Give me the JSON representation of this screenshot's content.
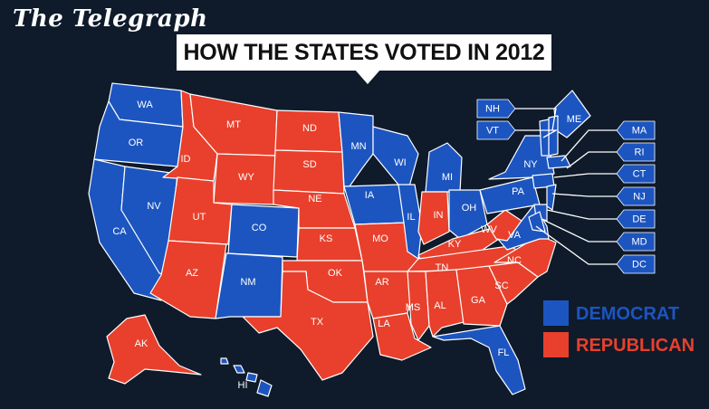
{
  "brand": "The Telegraph",
  "title": "HOW THE STATES VOTED IN 2012",
  "colors": {
    "democrat": "#1c55c0",
    "republican": "#e8402c",
    "background": "#0f1b2b",
    "border": "#ffffff"
  },
  "legend": [
    {
      "label": "DEMOCRAT",
      "party": "democrat"
    },
    {
      "label": "REPUBLICAN",
      "party": "republican"
    }
  ],
  "states": [
    {
      "abbr": "WA",
      "party": "democrat"
    },
    {
      "abbr": "OR",
      "party": "democrat"
    },
    {
      "abbr": "CA",
      "party": "democrat"
    },
    {
      "abbr": "NV",
      "party": "democrat"
    },
    {
      "abbr": "ID",
      "party": "republican"
    },
    {
      "abbr": "MT",
      "party": "republican"
    },
    {
      "abbr": "WY",
      "party": "republican"
    },
    {
      "abbr": "UT",
      "party": "republican"
    },
    {
      "abbr": "AZ",
      "party": "republican"
    },
    {
      "abbr": "CO",
      "party": "democrat"
    },
    {
      "abbr": "NM",
      "party": "democrat"
    },
    {
      "abbr": "ND",
      "party": "republican"
    },
    {
      "abbr": "SD",
      "party": "republican"
    },
    {
      "abbr": "NE",
      "party": "republican"
    },
    {
      "abbr": "KS",
      "party": "republican"
    },
    {
      "abbr": "OK",
      "party": "republican"
    },
    {
      "abbr": "TX",
      "party": "republican"
    },
    {
      "abbr": "MN",
      "party": "democrat"
    },
    {
      "abbr": "IA",
      "party": "democrat"
    },
    {
      "abbr": "MO",
      "party": "republican"
    },
    {
      "abbr": "AR",
      "party": "republican"
    },
    {
      "abbr": "LA",
      "party": "republican"
    },
    {
      "abbr": "WI",
      "party": "democrat"
    },
    {
      "abbr": "IL",
      "party": "democrat"
    },
    {
      "abbr": "MI",
      "party": "democrat"
    },
    {
      "abbr": "IN",
      "party": "republican"
    },
    {
      "abbr": "OH",
      "party": "democrat"
    },
    {
      "abbr": "KY",
      "party": "republican"
    },
    {
      "abbr": "TN",
      "party": "republican"
    },
    {
      "abbr": "MS",
      "party": "republican"
    },
    {
      "abbr": "AL",
      "party": "republican"
    },
    {
      "abbr": "GA",
      "party": "republican"
    },
    {
      "abbr": "FL",
      "party": "democrat"
    },
    {
      "abbr": "SC",
      "party": "republican"
    },
    {
      "abbr": "NC",
      "party": "republican"
    },
    {
      "abbr": "VA",
      "party": "democrat"
    },
    {
      "abbr": "WV",
      "party": "republican"
    },
    {
      "abbr": "PA",
      "party": "democrat"
    },
    {
      "abbr": "NY",
      "party": "democrat"
    },
    {
      "abbr": "ME",
      "party": "democrat"
    },
    {
      "abbr": "AK",
      "party": "republican"
    },
    {
      "abbr": "HI",
      "party": "democrat"
    }
  ],
  "callouts": [
    {
      "abbr": "NH",
      "party": "democrat"
    },
    {
      "abbr": "VT",
      "party": "democrat"
    },
    {
      "abbr": "MA",
      "party": "democrat"
    },
    {
      "abbr": "RI",
      "party": "democrat"
    },
    {
      "abbr": "CT",
      "party": "democrat"
    },
    {
      "abbr": "NJ",
      "party": "democrat"
    },
    {
      "abbr": "DE",
      "party": "democrat"
    },
    {
      "abbr": "MD",
      "party": "democrat"
    },
    {
      "abbr": "DC",
      "party": "democrat"
    }
  ]
}
